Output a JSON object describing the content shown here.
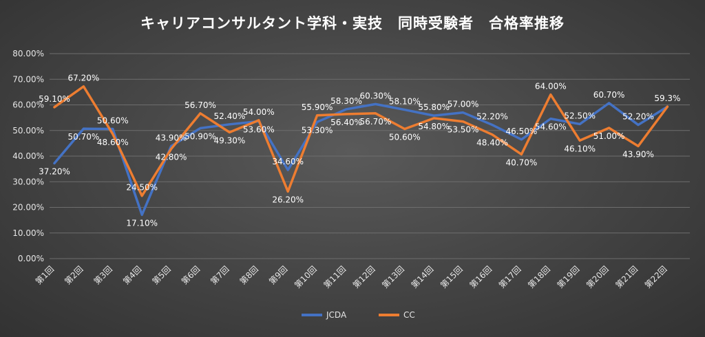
{
  "chart_data": {
    "type": "line",
    "title": "キャリアコンサルタント学科・実技　同時受験者　合格率推移",
    "categories": [
      "第1回",
      "第2回",
      "第3回",
      "第4回",
      "第5回",
      "第6回",
      "第7回",
      "第8回",
      "第9回",
      "第10回",
      "第11回",
      "第12回",
      "第13回",
      "第14回",
      "第15回",
      "第16回",
      "第17回",
      "第18回",
      "第19回",
      "第20回",
      "第21回",
      "第22回"
    ],
    "ylim": [
      0,
      80
    ],
    "yticks": [
      "0.00%",
      "10.00%",
      "20.00%",
      "30.00%",
      "40.00%",
      "50.00%",
      "60.00%",
      "70.00%",
      "80.00%"
    ],
    "grid": true,
    "legend_position": "bottom",
    "series": [
      {
        "name": "JCDA",
        "color": "#4472c4",
        "values": [
          37.2,
          50.7,
          50.6,
          17.1,
          43.9,
          50.9,
          52.4,
          53.6,
          34.6,
          53.3,
          58.3,
          60.3,
          58.1,
          55.8,
          57.0,
          52.2,
          46.5,
          54.6,
          52.5,
          60.7,
          52.2,
          59.3
        ],
        "labels": [
          "37.20%",
          "50.70%",
          "50.60%",
          "17.10%",
          "43.90%",
          "50.90%",
          "52.40%",
          "53.60%",
          "34.60%",
          "53.30%",
          "58.30%",
          "60.30%",
          "58.10%",
          "55.80%",
          "57.00%",
          "52.20%",
          "46.50%",
          "54.60%",
          "52.50%",
          "60.70%",
          "52.20%",
          "59.3%"
        ]
      },
      {
        "name": "CC",
        "color": "#ed7d31",
        "values": [
          59.1,
          67.2,
          48.6,
          24.5,
          42.8,
          56.7,
          49.3,
          54.0,
          26.2,
          55.9,
          56.4,
          56.7,
          50.6,
          54.8,
          53.5,
          48.4,
          40.7,
          64.0,
          46.1,
          51.0,
          43.9,
          59.3
        ],
        "labels": [
          "59.10%",
          "67.20%",
          "48.60%",
          "24.50%",
          "42.80%",
          "56.70%",
          "49.30%",
          "54.00%",
          "26.20%",
          "55.90%",
          "56.40%",
          "56.70%",
          "50.60%",
          "54.80%",
          "53.50%",
          "48.40%",
          "40.70%",
          "64.00%",
          "46.10%",
          "51.00%",
          "43.90%",
          ""
        ]
      }
    ]
  }
}
